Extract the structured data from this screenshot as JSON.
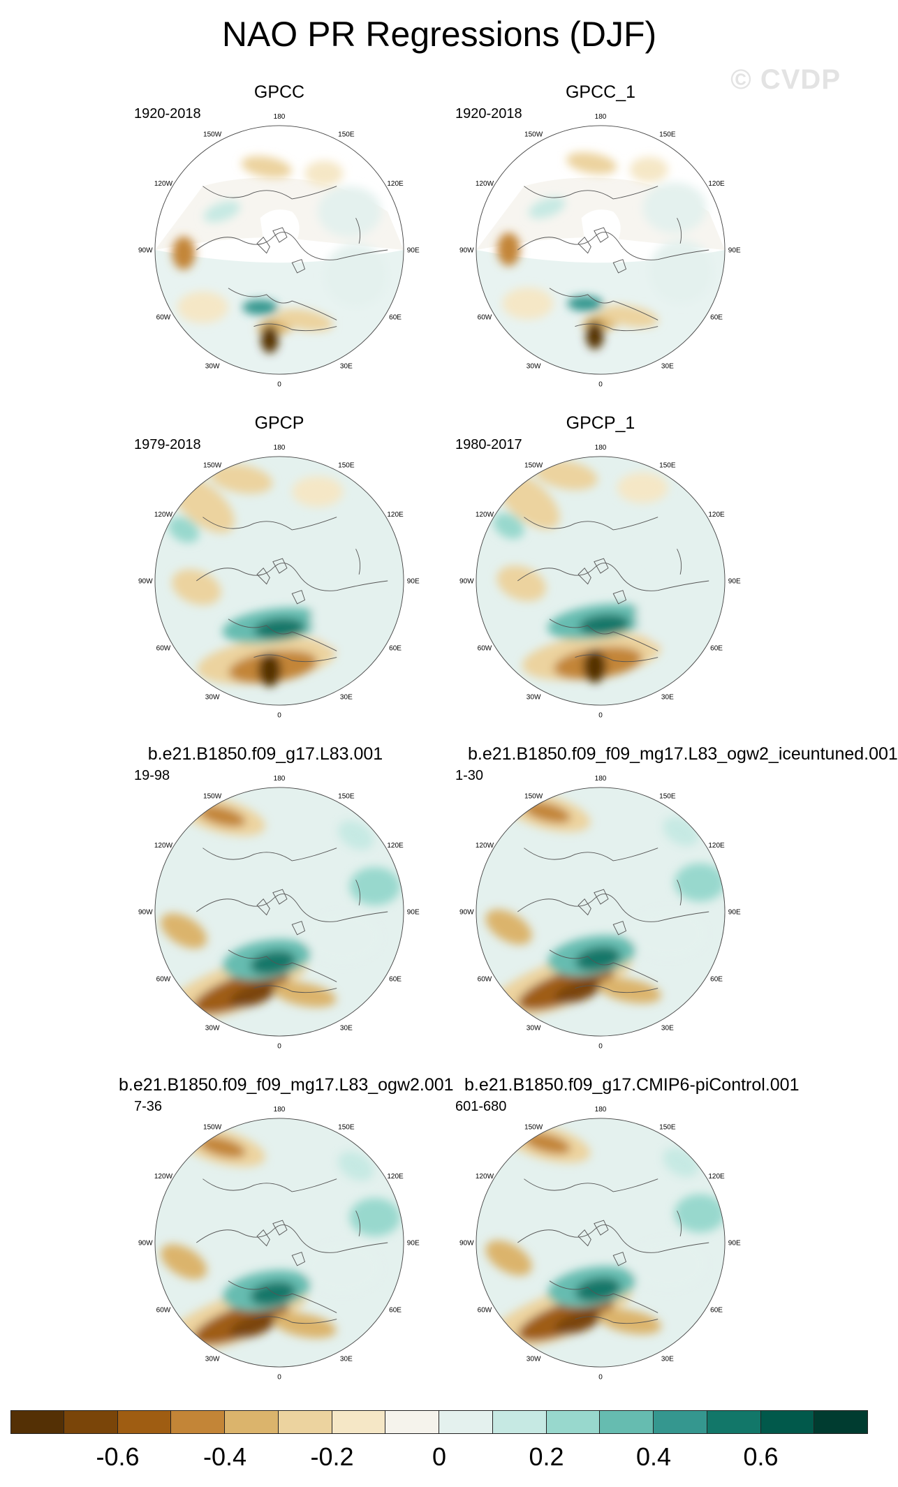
{
  "title": "NAO PR Regressions (DJF)",
  "watermark": "© CVDP",
  "panels": [
    {
      "title": "GPCC",
      "period": "1920-2018",
      "style": "obs"
    },
    {
      "title": "GPCC_1",
      "period": "1920-2018",
      "style": "obs"
    },
    {
      "title": "GPCP",
      "period": "1979-2018",
      "style": "sat"
    },
    {
      "title": "GPCP_1",
      "period": "1980-2017",
      "style": "sat"
    },
    {
      "title": "b.e21.B1850.f09_g17.L83.001",
      "period": "19-98",
      "style": "model"
    },
    {
      "title": "b.e21.B1850.f09_f09_mg17.L83_ogw2_iceuntuned.001",
      "period": "1-30",
      "style": "model"
    },
    {
      "title": "b.e21.B1850.f09_f09_mg17.L83_ogw2.001",
      "period": "7-36",
      "style": "model"
    },
    {
      "title": "b.e21.B1850.f09_g17.CMIP6-piControl.001",
      "period": "601-680",
      "style": "model"
    }
  ],
  "longitude_labels": [
    "180",
    "150E",
    "120E",
    "90E",
    "60E",
    "30E",
    "0",
    "30W",
    "60W",
    "90W",
    "120W",
    "150W"
  ],
  "colorbar": {
    "colors": [
      "#543005",
      "#7a4509",
      "#9f5d12",
      "#c38537",
      "#dbb46c",
      "#ecd39f",
      "#f5e7c6",
      "#f5f3ec",
      "#e4f1ee",
      "#c6e9e3",
      "#98d8cd",
      "#66bcb0",
      "#35978f",
      "#127769",
      "#01594b",
      "#003c30"
    ],
    "labels": [
      "-0.6",
      "-0.4",
      "-0.2",
      "0",
      "0.2",
      "0.4",
      "0.6"
    ]
  },
  "colors": {
    "land_outline": "#555555",
    "map_border": "#444444",
    "missing": "#ffffff"
  }
}
